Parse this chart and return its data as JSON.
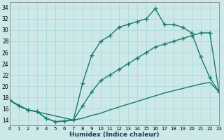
{
  "xlabel": "Humidex (Indice chaleur)",
  "bg_color": "#cce8e8",
  "line_color": "#1a7a6a",
  "line1_x": [
    0,
    1,
    2,
    3,
    4,
    5,
    6,
    7,
    8,
    9,
    10,
    11,
    12,
    13,
    14,
    15,
    16,
    17,
    18,
    19,
    20,
    21,
    22,
    23
  ],
  "line1_y": [
    17.5,
    16.5,
    15.8,
    15.5,
    14.3,
    13.7,
    13.8,
    14.0,
    20.5,
    25.5,
    28.0,
    29.0,
    30.5,
    31.0,
    31.5,
    32.0,
    33.8,
    31.0,
    31.0,
    30.5,
    29.5,
    25.2,
    21.5,
    19.0
  ],
  "line2_x": [
    0,
    2,
    7,
    8,
    9,
    10,
    11,
    12,
    13,
    14,
    15,
    16,
    17,
    18,
    19,
    20,
    21,
    22,
    23
  ],
  "line2_y": [
    17.5,
    15.8,
    14.0,
    16.5,
    19.0,
    21.0,
    22.0,
    23.0,
    24.0,
    25.0,
    26.0,
    27.0,
    27.5,
    28.0,
    28.5,
    29.0,
    29.5,
    29.5,
    19.0
  ],
  "line3_x": [
    0,
    1,
    2,
    3,
    4,
    5,
    6,
    7,
    8,
    9,
    10,
    11,
    12,
    13,
    14,
    15,
    16,
    17,
    18,
    19,
    20,
    21,
    22,
    23
  ],
  "line3_y": [
    17.5,
    16.5,
    15.8,
    15.5,
    14.3,
    13.7,
    13.8,
    14.0,
    14.3,
    14.8,
    15.2,
    15.8,
    16.3,
    16.8,
    17.3,
    17.8,
    18.3,
    18.8,
    19.2,
    19.6,
    20.0,
    20.4,
    20.7,
    19.0
  ],
  "xlim": [
    0,
    23
  ],
  "ylim": [
    13,
    35
  ],
  "yticks": [
    14,
    16,
    18,
    20,
    22,
    24,
    26,
    28,
    30,
    32,
    34
  ],
  "xticks": [
    0,
    1,
    2,
    3,
    4,
    5,
    6,
    7,
    8,
    9,
    10,
    11,
    12,
    13,
    14,
    15,
    16,
    17,
    18,
    19,
    20,
    21,
    22,
    23
  ],
  "figsize": [
    3.2,
    2.0
  ],
  "dpi": 100
}
